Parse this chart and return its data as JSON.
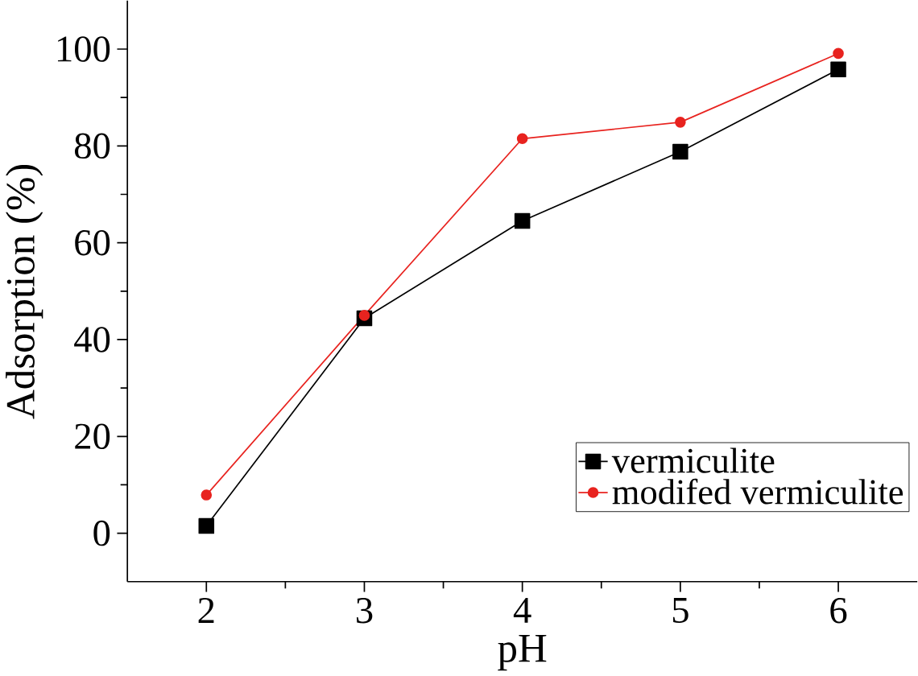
{
  "chart_data": {
    "type": "line",
    "xlabel": "pH",
    "ylabel": "Adsorption (%)",
    "x": [
      2,
      3,
      4,
      5,
      6
    ],
    "series": [
      {
        "name": "vermiculite",
        "color": "#000000",
        "marker": "square",
        "values": [
          1.5,
          44.4,
          64.5,
          78.8,
          95.8
        ]
      },
      {
        "name": "modifed vermiculite",
        "color": "#e8231f",
        "marker": "circle",
        "values": [
          7.9,
          45,
          81.5,
          84.9,
          99.1
        ]
      }
    ],
    "xlim": [
      1.5,
      6.5
    ],
    "ylim": [
      -10,
      110
    ],
    "xticks": [
      2,
      3,
      4,
      5,
      6
    ],
    "yticks": [
      0,
      20,
      40,
      60,
      80,
      100
    ],
    "grid": false,
    "legend": "bottom right",
    "line_style": "solid"
  }
}
